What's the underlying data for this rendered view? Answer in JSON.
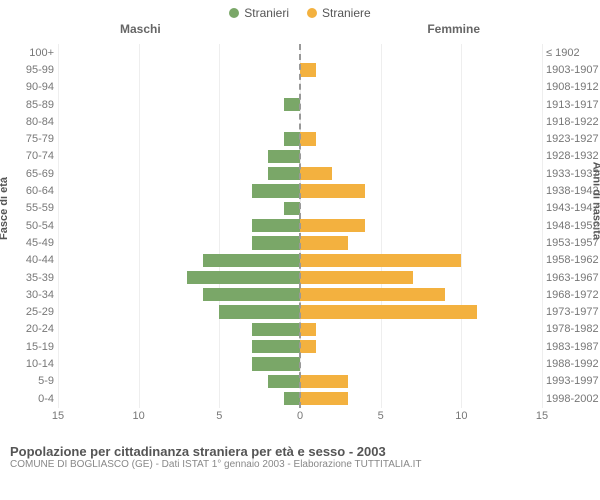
{
  "legend": {
    "male": {
      "label": "Stranieri",
      "color": "#7aa768"
    },
    "female": {
      "label": "Straniere",
      "color": "#f3b13f"
    }
  },
  "headers": {
    "left": "Maschi",
    "right": "Femmine"
  },
  "axis_titles": {
    "left": "Fasce di età",
    "right": "Anni di nascita"
  },
  "x_axis": {
    "min": -15,
    "max": 15,
    "ticks": [
      15,
      10,
      5,
      0,
      5,
      10,
      15
    ],
    "positions": [
      -15,
      -10,
      -5,
      0,
      5,
      10,
      15
    ]
  },
  "colors": {
    "background": "#ffffff",
    "grid": "#eeeeee",
    "center_dash": "#999999",
    "text": "#777777"
  },
  "rows": [
    {
      "age": "100+",
      "birth": "≤ 1902",
      "m": 0,
      "f": 0
    },
    {
      "age": "95-99",
      "birth": "1903-1907",
      "m": 0,
      "f": 1
    },
    {
      "age": "90-94",
      "birth": "1908-1912",
      "m": 0,
      "f": 0
    },
    {
      "age": "85-89",
      "birth": "1913-1917",
      "m": 1,
      "f": 0
    },
    {
      "age": "80-84",
      "birth": "1918-1922",
      "m": 0,
      "f": 0
    },
    {
      "age": "75-79",
      "birth": "1923-1927",
      "m": 1,
      "f": 1
    },
    {
      "age": "70-74",
      "birth": "1928-1932",
      "m": 2,
      "f": 0
    },
    {
      "age": "65-69",
      "birth": "1933-1937",
      "m": 2,
      "f": 2
    },
    {
      "age": "60-64",
      "birth": "1938-1942",
      "m": 3,
      "f": 4
    },
    {
      "age": "55-59",
      "birth": "1943-1947",
      "m": 1,
      "f": 0
    },
    {
      "age": "50-54",
      "birth": "1948-1952",
      "m": 3,
      "f": 4
    },
    {
      "age": "45-49",
      "birth": "1953-1957",
      "m": 3,
      "f": 3
    },
    {
      "age": "40-44",
      "birth": "1958-1962",
      "m": 6,
      "f": 10
    },
    {
      "age": "35-39",
      "birth": "1963-1967",
      "m": 7,
      "f": 7
    },
    {
      "age": "30-34",
      "birth": "1968-1972",
      "m": 6,
      "f": 9
    },
    {
      "age": "25-29",
      "birth": "1973-1977",
      "m": 5,
      "f": 11
    },
    {
      "age": "20-24",
      "birth": "1978-1982",
      "m": 3,
      "f": 1
    },
    {
      "age": "15-19",
      "birth": "1983-1987",
      "m": 3,
      "f": 1
    },
    {
      "age": "10-14",
      "birth": "1988-1992",
      "m": 3,
      "f": 0
    },
    {
      "age": "5-9",
      "birth": "1993-1997",
      "m": 2,
      "f": 3
    },
    {
      "age": "0-4",
      "birth": "1998-2002",
      "m": 1,
      "f": 3
    }
  ],
  "footer": {
    "title": "Popolazione per cittadinanza straniera per età e sesso - 2003",
    "subtitle": "COMUNE DI BOGLIASCO (GE) - Dati ISTAT 1° gennaio 2003 - Elaborazione TUTTITALIA.IT"
  }
}
